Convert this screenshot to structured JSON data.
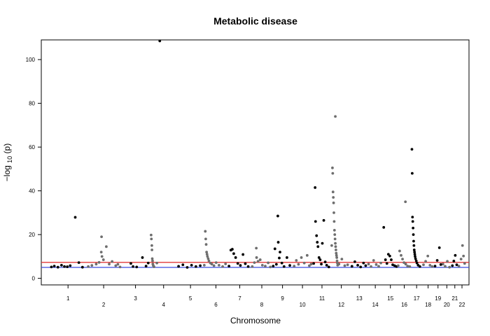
{
  "chart_data": {
    "type": "scatter",
    "title": "Metabolic disease",
    "xlabel": "Chromosome",
    "ylabel_prefix": "−log",
    "ylabel_sub": "10",
    "ylabel_suffix": "(p)",
    "ylim": [
      -3,
      109
    ],
    "yticks": [
      0,
      20,
      40,
      60,
      80,
      100
    ],
    "grid": false,
    "legend": "none",
    "colors": {
      "odd_chromosome": "#000000",
      "even_chromosome": "#6e6e6e",
      "upper_threshold": "#e03a3a",
      "lower_threshold": "#3a4be0"
    },
    "thresholds": [
      {
        "name": "genome-wide",
        "value": 7.3,
        "color": "#e03a3a"
      },
      {
        "name": "suggestive",
        "value": 5.0,
        "color": "#3a4be0"
      }
    ],
    "chromosomes": [
      {
        "label": "1",
        "start": 0,
        "length": 250
      },
      {
        "label": "2",
        "start": 250,
        "length": 243
      },
      {
        "label": "3",
        "start": 493,
        "length": 198
      },
      {
        "label": "4",
        "start": 691,
        "length": 191
      },
      {
        "label": "5",
        "start": 882,
        "length": 181
      },
      {
        "label": "6",
        "start": 1063,
        "length": 171
      },
      {
        "label": "7",
        "start": 1234,
        "length": 159
      },
      {
        "label": "8",
        "start": 1393,
        "length": 146
      },
      {
        "label": "9",
        "start": 1539,
        "length": 141
      },
      {
        "label": "10",
        "start": 1680,
        "length": 135
      },
      {
        "label": "11",
        "start": 1815,
        "length": 135
      },
      {
        "label": "12",
        "start": 1950,
        "length": 133
      },
      {
        "label": "13",
        "start": 2083,
        "length": 115
      },
      {
        "label": "14",
        "start": 2198,
        "length": 107
      },
      {
        "label": "15",
        "start": 2305,
        "length": 102
      },
      {
        "label": "16",
        "start": 2407,
        "length": 90
      },
      {
        "label": "17",
        "start": 2497,
        "length": 81
      },
      {
        "label": "18",
        "start": 2578,
        "length": 78
      },
      {
        "label": "19",
        "start": 2656,
        "length": 59
      },
      {
        "label": "20",
        "start": 2715,
        "length": 63
      },
      {
        "label": "21",
        "start": 2778,
        "length": 48
      },
      {
        "label": "22",
        "start": 2826,
        "length": 51
      }
    ],
    "x_range": [
      -60,
      2900
    ],
    "series": [
      {
        "values": [
          [
            10,
            5.2
          ],
          [
            30,
            5.6
          ],
          [
            55,
            5.1
          ],
          [
            80,
            6.0
          ],
          [
            100,
            5.4
          ],
          [
            120,
            5.3
          ],
          [
            140,
            5.8
          ],
          [
            175,
            27.9
          ],
          [
            200,
            7.2
          ],
          [
            225,
            5.1
          ],
          [
            560,
            6.8
          ],
          [
            575,
            5.4
          ],
          [
            600,
            5.2
          ],
          [
            640,
            9.5
          ],
          [
            665,
            5.6
          ],
          [
            680,
            7.0
          ],
          [
            700,
            19.8
          ],
          [
            702,
            18.0
          ],
          [
            705,
            15.0
          ],
          [
            706,
            13.0
          ],
          [
            708,
            9.0
          ],
          [
            710,
            8.0
          ],
          [
            712,
            6.5
          ],
          [
            715,
            5.8
          ],
          [
            720,
            5.3
          ],
          [
            740,
            7.0
          ],
          [
            1239,
            5.6
          ],
          [
            1252,
            12.9
          ],
          [
            1262,
            13.3
          ],
          [
            1272,
            11.3
          ],
          [
            1285,
            9.5
          ],
          [
            1300,
            6.8
          ],
          [
            1318,
            5.9
          ],
          [
            1336,
            10.9
          ],
          [
            1352,
            6.7
          ],
          [
            1372,
            5.4
          ],
          [
            1545,
            5.6
          ],
          [
            1557,
            13.5
          ],
          [
            1567,
            6.4
          ],
          [
            1577,
            28.5
          ],
          [
            1580,
            16.5
          ],
          [
            1587,
            9.3
          ],
          [
            1592,
            12.0
          ],
          [
            1605,
            7.0
          ],
          [
            1620,
            5.4
          ],
          [
            1640,
            9.5
          ],
          [
            1660,
            5.9
          ],
          [
            1825,
            6.8
          ],
          [
            1835,
            41.5
          ],
          [
            1838,
            26.0
          ],
          [
            1845,
            19.5
          ],
          [
            1850,
            16.5
          ],
          [
            1855,
            14.5
          ],
          [
            1862,
            9.5
          ],
          [
            1870,
            8.5
          ],
          [
            1878,
            6.5
          ],
          [
            1885,
            16.0
          ],
          [
            1895,
            26.5
          ],
          [
            1905,
            7.5
          ],
          [
            1915,
            6.0
          ],
          [
            1930,
            5.2
          ],
          [
            2090,
            5.5
          ],
          [
            2110,
            7.6
          ],
          [
            2130,
            6.0
          ],
          [
            2150,
            5.2
          ],
          [
            2170,
            7.0
          ],
          [
            2185,
            5.8
          ],
          [
            2310,
            23.3
          ],
          [
            2322,
            8.5
          ],
          [
            2332,
            6.8
          ],
          [
            2342,
            11.0
          ],
          [
            2352,
            10.2
          ],
          [
            2362,
            8.5
          ],
          [
            2372,
            6.2
          ],
          [
            2385,
            5.8
          ],
          [
            2398,
            5.4
          ],
          [
            2585,
            6.2
          ],
          [
            2600,
            7.8
          ],
          [
            2615,
            10.2
          ],
          [
            2630,
            6.0
          ],
          [
            2645,
            5.4
          ],
          [
            2720,
            6.5
          ],
          [
            2735,
            5.5
          ],
          [
            2750,
            7.8
          ],
          [
            2765,
            5.1
          ],
          [
            2830,
            5.6
          ],
          [
            2845,
            8.8
          ],
          [
            2855,
            15.0
          ],
          [
            2862,
            10.2
          ],
          [
            2870,
            6.8
          ]
        ]
      },
      {
        "values": [
          [
            265,
            5.4
          ],
          [
            290,
            5.9
          ],
          [
            320,
            6.5
          ],
          [
            340,
            7.3
          ],
          [
            355,
            12.0
          ],
          [
            357,
            19.0
          ],
          [
            360,
            10.0
          ],
          [
            370,
            8.5
          ],
          [
            390,
            14.5
          ],
          [
            410,
            6.5
          ],
          [
            430,
            7.7
          ],
          [
            455,
            5.8
          ],
          [
            470,
            6.4
          ],
          [
            485,
            5.2
          ],
          [
            890,
            5.5
          ],
          [
            920,
            6.2
          ],
          [
            950,
            5.0
          ],
          [
            980,
            6.0
          ],
          [
            1010,
            5.4
          ],
          [
            1040,
            5.8
          ],
          [
            1068,
            6.0
          ],
          [
            1075,
            21.5
          ],
          [
            1078,
            18.0
          ],
          [
            1081,
            15.5
          ],
          [
            1084,
            12.0
          ],
          [
            1087,
            11.0
          ],
          [
            1090,
            10.0
          ],
          [
            1095,
            9.0
          ],
          [
            1100,
            8.0
          ],
          [
            1110,
            7.0
          ],
          [
            1120,
            6.5
          ],
          [
            1135,
            5.8
          ],
          [
            1150,
            7.2
          ],
          [
            1170,
            6.0
          ],
          [
            1195,
            5.4
          ],
          [
            1215,
            6.6
          ],
          [
            1400,
            5.4
          ],
          [
            1415,
            7.2
          ],
          [
            1428,
            13.8
          ],
          [
            1430,
            9.5
          ],
          [
            1440,
            7.8
          ],
          [
            1455,
            8.5
          ],
          [
            1470,
            6.0
          ],
          [
            1490,
            5.6
          ],
          [
            1510,
            7.1
          ],
          [
            1525,
            5.2
          ],
          [
            1690,
            5.6
          ],
          [
            1705,
            8.2
          ],
          [
            1720,
            6.4
          ],
          [
            1740,
            9.5
          ],
          [
            1760,
            7.0
          ],
          [
            1780,
            10.5
          ],
          [
            1795,
            5.8
          ],
          [
            1808,
            6.5
          ],
          [
            1950,
            15.0
          ],
          [
            1955,
            50.5
          ],
          [
            1957,
            48.0
          ],
          [
            1959,
            39.5
          ],
          [
            1961,
            37.0
          ],
          [
            1963,
            34.5
          ],
          [
            1965,
            30.0
          ],
          [
            1967,
            26.0
          ],
          [
            1969,
            22.0
          ],
          [
            1971,
            20.0
          ],
          [
            1973,
            18.0
          ],
          [
            1975,
            16.0
          ],
          [
            1977,
            14.5
          ],
          [
            1979,
            13.0
          ],
          [
            1981,
            11.5
          ],
          [
            1983,
            10.5
          ],
          [
            1985,
            9.5
          ],
          [
            1987,
            8.0
          ],
          [
            1989,
            7.0
          ],
          [
            1991,
            6.0
          ],
          [
            1975,
            74.0
          ],
          [
            2000,
            6.5
          ],
          [
            2020,
            8.8
          ],
          [
            2040,
            5.8
          ],
          [
            2060,
            6.2
          ],
          [
            2205,
            6.5
          ],
          [
            2222,
            5.4
          ],
          [
            2240,
            8.2
          ],
          [
            2258,
            6.3
          ],
          [
            2275,
            5.5
          ],
          [
            2290,
            7.0
          ],
          [
            2410,
            5.8
          ],
          [
            2420,
            12.5
          ],
          [
            2430,
            10.5
          ],
          [
            2440,
            8.8
          ],
          [
            2450,
            7.2
          ],
          [
            2462,
            6.5
          ],
          [
            2475,
            5.6
          ],
          [
            2490,
            5.4
          ],
          [
            2505,
            59.0
          ],
          [
            2507,
            48.0
          ],
          [
            2509,
            28.0
          ],
          [
            2511,
            26.0
          ],
          [
            2513,
            23.0
          ],
          [
            2515,
            20.0
          ],
          [
            2517,
            17.0
          ],
          [
            2519,
            15.0
          ],
          [
            2521,
            13.0
          ],
          [
            2523,
            12.0
          ],
          [
            2525,
            11.0
          ],
          [
            2527,
            10.0
          ],
          [
            2530,
            9.0
          ],
          [
            2535,
            8.0
          ],
          [
            2540,
            7.0
          ],
          [
            2548,
            6.0
          ],
          [
            2560,
            5.4
          ],
          [
            2665,
            5.6
          ],
          [
            2680,
            8.2
          ],
          [
            2695,
            14.0
          ],
          [
            2705,
            6.3
          ],
          [
            2785,
            5.8
          ],
          [
            2795,
            7.9
          ],
          [
            2805,
            10.5
          ],
          [
            2815,
            6.2
          ],
          [
            2460,
            35.0
          ]
        ]
      }
    ]
  }
}
